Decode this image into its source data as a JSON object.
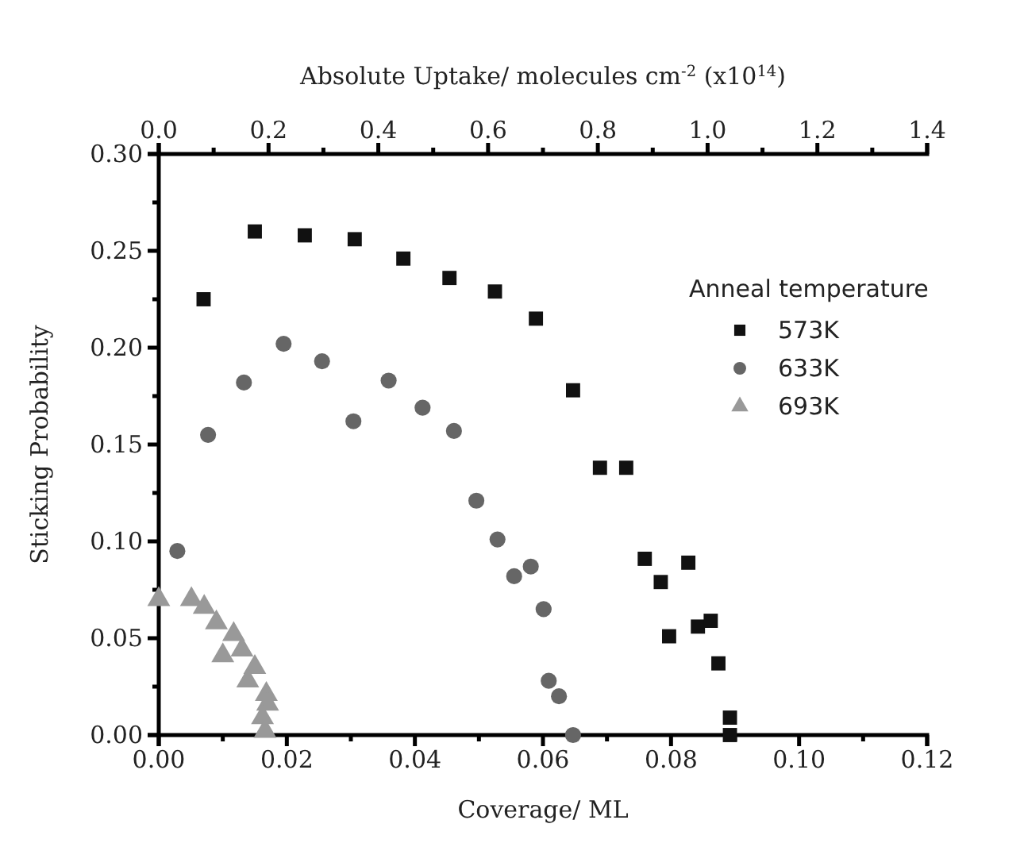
{
  "chart_data": {
    "type": "scatter",
    "xlabel": "Coverage/ ML",
    "ylabel": "Sticking Probability",
    "x2label": "Absolute Uptake/ molecules cm$^{-2}$ (x10$^{14}$)",
    "legend_title": "Anneal temperature",
    "legend": "top right",
    "grid": false,
    "xlim": [
      0,
      0.12
    ],
    "xticks": [
      {
        "value": 0,
        "label": "0.00"
      },
      {
        "value": 0.02,
        "label": "0.02"
      },
      {
        "value": 0.04,
        "label": "0.04"
      },
      {
        "value": 0.06,
        "label": "0.06"
      },
      {
        "value": 0.08,
        "label": "0.08"
      },
      {
        "value": 0.1,
        "label": "0.10"
      },
      {
        "value": 0.12,
        "label": "0.12"
      }
    ],
    "x2lim": [
      0,
      1.4
    ],
    "x2ticks": [
      {
        "value": 0,
        "label": "0.0"
      },
      0.2,
      0.4,
      0.6,
      0.8,
      {
        "value": 1,
        "label": "1.0"
      },
      1.2,
      1.4
    ],
    "ylim": [
      0,
      0.3
    ],
    "yticks": [
      {
        "value": 0,
        "label": "0.00"
      },
      0.05,
      {
        "value": 0.1,
        "label": "0.10"
      },
      0.15,
      {
        "value": 0.2,
        "label": "0.20"
      },
      0.25,
      {
        "value": 0.3,
        "label": "0.30"
      }
    ],
    "series": [
      {
        "name": "573K",
        "color": "#111111",
        "marker": "square",
        "x": [
          0.007,
          0.015,
          0.0228,
          0.0306,
          0.0382,
          0.0454,
          0.0525,
          0.0589,
          0.0647,
          0.0689,
          0.073,
          0.0759,
          0.0784,
          0.0827,
          0.0797,
          0.0842,
          0.0862,
          0.0874,
          0.0892,
          0.0892
        ],
        "values": [
          0.225,
          0.26,
          0.258,
          0.256,
          0.246,
          0.236,
          0.229,
          0.215,
          0.178,
          0.138,
          0.138,
          0.091,
          0.079,
          0.089,
          0.051,
          0.056,
          0.059,
          0.037,
          0.009,
          0
        ]
      },
      {
        "name": "633K",
        "color": "#666666",
        "marker": "circle",
        "x": [
          0.0029,
          0.0077,
          0.0133,
          0.0195,
          0.0255,
          0.0304,
          0.0359,
          0.0412,
          0.0461,
          0.0496,
          0.0529,
          0.0555,
          0.0581,
          0.0601,
          0.0609,
          0.0625,
          0.0647
        ],
        "values": [
          0.095,
          0.155,
          0.182,
          0.202,
          0.193,
          0.162,
          0.183,
          0.169,
          0.157,
          0.121,
          0.101,
          0.082,
          0.087,
          0.065,
          0.028,
          0.02,
          0
        ]
      },
      {
        "name": "693K",
        "color": "#999999",
        "marker": "triangle",
        "x": [
          0,
          0.0051,
          0.0071,
          0.009,
          0.0117,
          0.01,
          0.013,
          0.015,
          0.0139,
          0.0168,
          0.017,
          0.0164,
          0.0162,
          0.0164,
          0.0166
        ],
        "values": [
          0.07,
          0.07,
          0.066,
          0.058,
          0.052,
          0.041,
          0.044,
          0.035,
          0.028,
          0.021,
          0.016,
          null,
          0.009,
          null,
          0.002
        ]
      }
    ]
  }
}
